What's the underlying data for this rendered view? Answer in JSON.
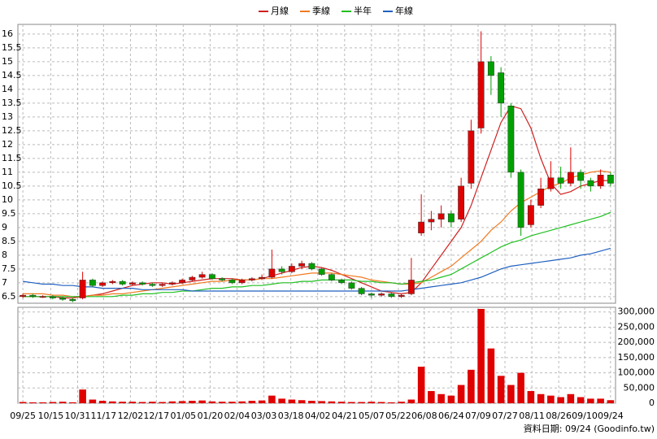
{
  "chart_data": {
    "type": "candlestick",
    "legend": "top",
    "up_color": "#e00000",
    "down_color": "#00a000",
    "volume_color": "#e00000",
    "xticks": [
      {
        "value": 0,
        "label": "09/25"
      },
      {
        "value": 2.8,
        "label": "10/15"
      },
      {
        "value": 5.5,
        "label": "10/31"
      },
      {
        "value": 8.1,
        "label": "11/17"
      },
      {
        "value": 10.8,
        "label": "12/02"
      },
      {
        "value": 13.4,
        "label": "12/17"
      },
      {
        "value": 16.1,
        "label": "01/05"
      },
      {
        "value": 18.8,
        "label": "01/20"
      },
      {
        "value": 21.5,
        "label": "02/04"
      },
      {
        "value": 24.2,
        "label": "03/03"
      },
      {
        "value": 26.9,
        "label": "03/18"
      },
      {
        "value": 29.6,
        "label": "04/02"
      },
      {
        "value": 32.3,
        "label": "04/21"
      },
      {
        "value": 35,
        "label": "05/07"
      },
      {
        "value": 37.7,
        "label": "05/22"
      },
      {
        "value": 40.3,
        "label": "06/08"
      },
      {
        "value": 43,
        "label": "06/24"
      },
      {
        "value": 45.7,
        "label": "07/09"
      },
      {
        "value": 48.4,
        "label": "07/27"
      },
      {
        "value": 51.1,
        "label": "08/11"
      },
      {
        "value": 53.8,
        "label": "08/26"
      },
      {
        "value": 56.4,
        "label": "09/10"
      },
      {
        "value": 59,
        "label": "09/24"
      }
    ],
    "ylim": [
      6.26,
      16.35
    ],
    "yticks": [
      6.5,
      7,
      7.5,
      8,
      8.5,
      9,
      9.5,
      10,
      10.5,
      11,
      11.5,
      12,
      12.5,
      13,
      13.5,
      14,
      14.5,
      15,
      15.5,
      16
    ],
    "y2lim": [
      0,
      310000
    ],
    "y2ticks": [
      0,
      {
        "value": 50000,
        "label": "50,000"
      },
      {
        "value": 100000,
        "label": "100,000"
      },
      {
        "value": 150000,
        "label": "150,000"
      },
      {
        "value": 200000,
        "label": "200,000"
      },
      {
        "value": 250000,
        "label": "250,000"
      },
      {
        "value": 300000,
        "label": "300,000"
      }
    ],
    "grid": true,
    "open": [
      6.5,
      6.55,
      6.5,
      6.5,
      6.45,
      6.4,
      6.45,
      7.1,
      6.9,
      7.0,
      7.05,
      6.95,
      7.0,
      6.95,
      6.9,
      6.95,
      7.0,
      7.1,
      7.2,
      7.3,
      7.15,
      7.1,
      7.0,
      7.1,
      7.15,
      7.2,
      7.5,
      7.4,
      7.6,
      7.7,
      7.5,
      7.3,
      7.1,
      7.0,
      6.8,
      6.6,
      6.55,
      6.6,
      6.5,
      6.6,
      8.8,
      9.2,
      9.3,
      9.5,
      9.3,
      10.6,
      12.6,
      15.0,
      14.6,
      13.4,
      11.0,
      9.1,
      9.8,
      10.4,
      10.8,
      10.6,
      11.0,
      10.7,
      10.5,
      10.9
    ],
    "high": [
      6.6,
      6.6,
      6.55,
      6.55,
      6.5,
      6.45,
      7.4,
      7.15,
      7.05,
      7.1,
      7.1,
      7.05,
      7.05,
      7.0,
      7.0,
      7.05,
      7.15,
      7.25,
      7.4,
      7.35,
      7.2,
      7.15,
      7.15,
      7.2,
      7.3,
      8.2,
      7.6,
      7.7,
      7.8,
      7.75,
      7.55,
      7.35,
      7.15,
      7.05,
      6.85,
      6.65,
      6.65,
      6.65,
      6.6,
      7.9,
      10.2,
      9.6,
      9.8,
      9.6,
      10.8,
      12.9,
      16.1,
      15.2,
      14.8,
      13.5,
      11.1,
      10.0,
      10.8,
      11.4,
      11.2,
      11.9,
      11.1,
      10.8,
      11.1,
      11.0
    ],
    "low": [
      6.45,
      6.45,
      6.45,
      6.4,
      6.35,
      6.3,
      6.4,
      6.85,
      6.85,
      6.95,
      6.9,
      6.9,
      6.9,
      6.85,
      6.85,
      6.9,
      6.95,
      7.05,
      7.15,
      7.1,
      7.05,
      6.95,
      6.95,
      7.05,
      7.1,
      7.15,
      7.3,
      7.35,
      7.5,
      7.45,
      7.25,
      7.05,
      6.95,
      6.75,
      6.55,
      6.45,
      6.5,
      6.45,
      6.45,
      6.55,
      8.7,
      8.9,
      9.0,
      9.0,
      9.2,
      10.4,
      12.4,
      13.8,
      13.0,
      10.8,
      8.7,
      9.0,
      9.7,
      10.3,
      10.4,
      10.5,
      10.4,
      10.3,
      10.4,
      10.5
    ],
    "close": [
      6.55,
      6.5,
      6.5,
      6.45,
      6.4,
      6.35,
      7.1,
      6.9,
      7.0,
      7.05,
      6.95,
      7.0,
      6.95,
      6.9,
      6.95,
      7.0,
      7.1,
      7.2,
      7.3,
      7.15,
      7.1,
      7.0,
      7.1,
      7.15,
      7.2,
      7.5,
      7.4,
      7.6,
      7.7,
      7.5,
      7.3,
      7.1,
      7.0,
      6.8,
      6.6,
      6.55,
      6.6,
      6.5,
      6.55,
      7.1,
      9.2,
      9.3,
      9.5,
      9.2,
      10.5,
      12.5,
      15.0,
      14.5,
      13.5,
      11.0,
      9.0,
      9.8,
      10.4,
      10.8,
      10.6,
      11.0,
      10.7,
      10.5,
      10.9,
      10.6
    ],
    "volume": [
      4000,
      3000,
      3000,
      4000,
      5000,
      3000,
      45000,
      12000,
      8000,
      6000,
      5000,
      5000,
      4000,
      5000,
      4000,
      6000,
      7000,
      8000,
      9000,
      6000,
      5000,
      5000,
      6000,
      8000,
      9000,
      25000,
      15000,
      12000,
      10000,
      8000,
      7000,
      6000,
      5000,
      4000,
      4000,
      5000,
      4000,
      3000,
      5000,
      12000,
      120000,
      40000,
      30000,
      25000,
      60000,
      110000,
      310000,
      180000,
      90000,
      60000,
      100000,
      40000,
      30000,
      25000,
      20000,
      30000,
      20000,
      15000,
      15000,
      10000
    ],
    "series": [
      {
        "name": "月線",
        "color": "#d02020",
        "values": [
          6.5,
          6.5,
          6.5,
          6.5,
          6.45,
          6.45,
          6.5,
          6.55,
          6.6,
          6.7,
          6.8,
          6.9,
          6.95,
          7.0,
          7.0,
          6.95,
          7.0,
          7.05,
          7.1,
          7.15,
          7.15,
          7.15,
          7.1,
          7.1,
          7.15,
          7.25,
          7.35,
          7.45,
          7.55,
          7.6,
          7.55,
          7.45,
          7.3,
          7.15,
          7.0,
          6.85,
          6.7,
          6.65,
          6.6,
          6.65,
          7.0,
          7.5,
          8.0,
          8.5,
          9.0,
          9.8,
          10.8,
          11.8,
          12.8,
          13.4,
          13.3,
          12.6,
          11.5,
          10.6,
          10.2,
          10.3,
          10.5,
          10.6,
          10.7,
          10.7
        ]
      },
      {
        "name": "季線",
        "color": "#f07a20",
        "values": [
          6.6,
          6.6,
          6.6,
          6.55,
          6.55,
          6.5,
          6.5,
          6.55,
          6.55,
          6.6,
          6.6,
          6.65,
          6.7,
          6.75,
          6.8,
          6.85,
          6.9,
          6.95,
          7.0,
          7.05,
          7.05,
          7.1,
          7.1,
          7.1,
          7.15,
          7.15,
          7.2,
          7.25,
          7.3,
          7.35,
          7.35,
          7.35,
          7.3,
          7.25,
          7.2,
          7.1,
          7.05,
          7.0,
          6.95,
          6.95,
          7.0,
          7.2,
          7.4,
          7.6,
          7.9,
          8.2,
          8.5,
          8.9,
          9.2,
          9.6,
          9.9,
          10.1,
          10.3,
          10.5,
          10.6,
          10.8,
          10.9,
          11.0,
          11.05,
          11.0
        ]
      },
      {
        "name": "半年",
        "color": "#20c020",
        "values": [
          6.5,
          6.5,
          6.5,
          6.5,
          6.5,
          6.5,
          6.5,
          6.5,
          6.5,
          6.5,
          6.55,
          6.55,
          6.6,
          6.6,
          6.65,
          6.65,
          6.7,
          6.7,
          6.75,
          6.8,
          6.8,
          6.85,
          6.85,
          6.9,
          6.9,
          6.95,
          7.0,
          7.0,
          7.05,
          7.05,
          7.1,
          7.1,
          7.1,
          7.1,
          7.05,
          7.05,
          7.0,
          7.0,
          6.95,
          7.0,
          7.05,
          7.1,
          7.2,
          7.3,
          7.5,
          7.7,
          7.9,
          8.1,
          8.3,
          8.45,
          8.55,
          8.7,
          8.8,
          8.9,
          9.0,
          9.1,
          9.2,
          9.3,
          9.4,
          9.55
        ]
      },
      {
        "name": "年線",
        "color": "#2060c0",
        "values": [
          7.05,
          7.0,
          6.95,
          6.95,
          6.9,
          6.9,
          6.85,
          6.85,
          6.8,
          6.8,
          6.8,
          6.8,
          6.75,
          6.75,
          6.75,
          6.75,
          6.75,
          6.7,
          6.7,
          6.7,
          6.7,
          6.7,
          6.7,
          6.7,
          6.7,
          6.7,
          6.7,
          6.7,
          6.7,
          6.7,
          6.7,
          6.7,
          6.7,
          6.7,
          6.7,
          6.7,
          6.7,
          6.7,
          6.7,
          6.75,
          6.8,
          6.85,
          6.9,
          6.95,
          7.0,
          7.1,
          7.2,
          7.35,
          7.5,
          7.6,
          7.65,
          7.7,
          7.75,
          7.8,
          7.85,
          7.9,
          8.0,
          8.05,
          8.15,
          8.25
        ]
      }
    ],
    "footer": "資料日期: 09/24  (Goodinfo.tw)"
  }
}
